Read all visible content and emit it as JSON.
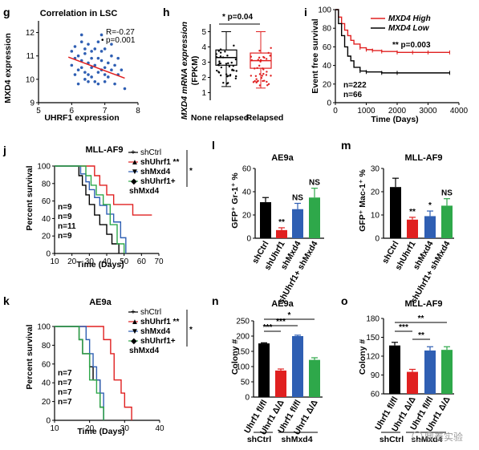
{
  "panels": {
    "g": {
      "label": "g",
      "title": "Correlation in LSC",
      "xlabel": "UHRF1 expression",
      "ylabel": "MXD4 expression",
      "r_text": "R=-0.27",
      "p_text": "p=0.001",
      "colors": {
        "points": "#2f5fb3",
        "fit": "#e02020"
      }
    },
    "h": {
      "label": "h",
      "ylabel_line1": "MXD4 mRNA expression",
      "ylabel_line2": "(FPKM)",
      "groups": [
        "None relapsed",
        "Relapsed"
      ],
      "sig_text": "*  p=0.04",
      "colors": {
        "none": "#000000",
        "relapsed": "#e02020"
      }
    },
    "i": {
      "label": "i",
      "xlabel": "Time (Days)",
      "ylabel": "Event free survival",
      "legend": [
        "MXD4 High",
        "MXD4 Low"
      ],
      "p_text": "** p=0.003",
      "n_high": "n=222",
      "n_low": "n=66",
      "colors": {
        "high": "#e02020",
        "low": "#000000"
      }
    },
    "j": {
      "label": "j",
      "title": "MLL-AF9",
      "xlabel": "Time (Days)",
      "ylabel": "Percent survival",
      "legend": [
        "shCtrl",
        "shUhrf1 **",
        "shMxd4",
        "shUhrf1+",
        "shMxd4"
      ],
      "sig_star": "*",
      "n_labels": [
        "n=9",
        "n=9",
        "n=11",
        "n=9"
      ]
    },
    "k": {
      "label": "k",
      "title": "AE9a",
      "xlabel": "Time (Days)",
      "ylabel": "Percent survival",
      "legend": [
        "shCtrl",
        "shUhrf1 **",
        "shMxd4",
        "shUhrf1+",
        "shMxd4"
      ],
      "sig_star": "*",
      "n_labels": [
        "n=7",
        "n=7",
        "n=7",
        "n=7"
      ]
    },
    "l": {
      "label": "l",
      "title": "AE9a",
      "ylabel": "GFP⁺ Gr-1⁺ %",
      "categories": [
        "shCtrl",
        "shUhrf1",
        "shMxd4",
        "shUhrf1+ shMxd4"
      ],
      "sig": [
        "",
        "**",
        "NS",
        "NS"
      ]
    },
    "m": {
      "label": "m",
      "title": "MLL-AF9",
      "ylabel": "GFP⁺ Mac-1⁺ %",
      "categories": [
        "shCtrl",
        "shUhrf1",
        "shMxd4",
        "shUhrf1+ shMxd4"
      ],
      "sig": [
        "",
        "**",
        "*",
        "NS"
      ]
    },
    "n": {
      "label": "n",
      "title": "AE9a",
      "ylabel": "Colony #",
      "categories": [
        "Uhrf1 fl/fl",
        "Uhrf1 Δ/Δ",
        "Uhrf1 fl/fl",
        "Uhrf1 Δ/Δ"
      ],
      "groups": [
        "shCtrl",
        "shMxd4"
      ],
      "sig": [
        "***",
        "***",
        "*"
      ]
    },
    "o": {
      "label": "o",
      "title": "MLL-AF9",
      "ylabel": "Colony #",
      "categories": [
        "Uhrf1 fl/fl",
        "Uhrf1 Δ/Δ",
        "Uhrf1 fl/fl",
        "Uhrf1 Δ/Δ"
      ],
      "groups": [
        "shCtrl",
        "shMxd4"
      ],
      "sig": [
        "***",
        "**",
        "**"
      ]
    }
  },
  "watermark": "鼎泰实验",
  "chart_data": [
    {
      "panel": "g",
      "type": "scatter",
      "title": "Correlation in LSC",
      "xlabel": "UHRF1 expression",
      "ylabel": "MXD4 expression",
      "xlim": [
        5,
        8
      ],
      "ylim": [
        9,
        12.5
      ],
      "xticks": [
        5,
        6,
        7,
        8
      ],
      "yticks": [
        9,
        10,
        11,
        12
      ],
      "fit": {
        "x": [
          5.9,
          7.6
        ],
        "y": [
          10.95,
          10.05
        ]
      },
      "points": [
        [
          6.1,
          11.4
        ],
        [
          6.3,
          11.6
        ],
        [
          6.5,
          11.5
        ],
        [
          6.8,
          11.6
        ],
        [
          7.0,
          11.3
        ],
        [
          6.2,
          11.0
        ],
        [
          6.4,
          11.1
        ],
        [
          6.6,
          10.9
        ],
        [
          6.9,
          11.2
        ],
        [
          7.2,
          11.0
        ],
        [
          6.0,
          10.6
        ],
        [
          6.3,
          10.5
        ],
        [
          6.5,
          10.7
        ],
        [
          6.7,
          10.6
        ],
        [
          7.0,
          10.5
        ],
        [
          7.3,
          10.6
        ],
        [
          6.1,
          10.2
        ],
        [
          6.4,
          10.3
        ],
        [
          6.6,
          10.1
        ],
        [
          6.8,
          10.3
        ],
        [
          7.1,
          10.1
        ],
        [
          7.4,
          10.2
        ],
        [
          6.2,
          9.8
        ],
        [
          6.5,
          9.9
        ],
        [
          6.8,
          9.8
        ],
        [
          7.0,
          9.9
        ],
        [
          7.3,
          9.8
        ],
        [
          6.3,
          11.9
        ],
        [
          6.9,
          11.9
        ],
        [
          7.5,
          10.4
        ],
        [
          6.0,
          11.2
        ],
        [
          6.7,
          11.3
        ],
        [
          7.2,
          11.5
        ],
        [
          6.4,
          10.0
        ],
        [
          7.6,
          9.6
        ],
        [
          6.9,
          10.8
        ],
        [
          6.2,
          10.4
        ],
        [
          6.6,
          11.2
        ],
        [
          7.1,
          10.7
        ],
        [
          6.5,
          10.2
        ],
        [
          6.8,
          10.9
        ],
        [
          6.3,
          10.8
        ],
        [
          7.0,
          10.2
        ],
        [
          6.7,
          9.9
        ],
        [
          6.1,
          10.9
        ],
        [
          7.2,
          10.4
        ],
        [
          6.4,
          11.3
        ],
        [
          6.9,
          10.4
        ],
        [
          6.6,
          10.5
        ],
        [
          7.4,
          10.9
        ]
      ]
    },
    {
      "panel": "h",
      "type": "box",
      "ylabel": "MXD4 mRNA expression (FPKM)",
      "ylim": [
        0.5,
        5.5
      ],
      "yticks": [
        1,
        2,
        3,
        4,
        5
      ],
      "categories": [
        "None relapsed",
        "Relapsed"
      ],
      "boxes": [
        {
          "q1": 2.8,
          "median": 3.3,
          "q3": 3.8,
          "whisker_low": 1.4,
          "whisker_high": 5.0
        },
        {
          "q1": 2.6,
          "median": 3.1,
          "q3": 3.6,
          "whisker_low": 1.3,
          "whisker_high": 5.0
        }
      ]
    },
    {
      "panel": "i",
      "type": "line",
      "xlabel": "Time (Days)",
      "ylabel": "Event free survival",
      "xlim": [
        0,
        4000
      ],
      "ylim": [
        0,
        100
      ],
      "xticks": [
        0,
        1000,
        2000,
        3000,
        4000
      ],
      "yticks": [
        0,
        20,
        40,
        60,
        80,
        100
      ],
      "series": [
        {
          "name": "MXD4 High",
          "x": [
            0,
            100,
            200,
            300,
            400,
            500,
            600,
            800,
            1000,
            1200,
            1500,
            2000,
            2500,
            3000,
            3700
          ],
          "y": [
            100,
            92,
            85,
            78,
            72,
            67,
            63,
            59,
            57,
            56,
            55,
            54,
            54,
            54,
            54
          ]
        },
        {
          "name": "MXD4 Low",
          "x": [
            0,
            100,
            200,
            300,
            400,
            500,
            600,
            800,
            1000,
            1500,
            2000,
            3700
          ],
          "y": [
            100,
            85,
            72,
            60,
            50,
            45,
            38,
            34,
            33,
            32,
            32,
            32
          ]
        }
      ]
    },
    {
      "panel": "j",
      "type": "line",
      "title": "MLL-AF9",
      "xlabel": "Time (Days)",
      "ylabel": "Percent survival",
      "xlim": [
        10,
        70
      ],
      "ylim": [
        0,
        100
      ],
      "xticks": [
        10,
        20,
        30,
        40,
        50,
        60,
        70
      ],
      "yticks": [
        0,
        20,
        40,
        60,
        80,
        100
      ],
      "series": [
        {
          "name": "shCtrl",
          "x": [
            10,
            20,
            24,
            26,
            28,
            30,
            33,
            36,
            40,
            43,
            47
          ],
          "y": [
            100,
            100,
            89,
            78,
            67,
            56,
            44,
            33,
            22,
            11,
            0
          ]
        },
        {
          "name": "shUhrf1",
          "x": [
            10,
            30,
            33,
            36,
            40,
            44,
            50,
            55,
            60,
            63,
            66
          ],
          "y": [
            100,
            100,
            89,
            78,
            67,
            56,
            56,
            44,
            44,
            44,
            44
          ]
        },
        {
          "name": "shMxd4",
          "x": [
            10,
            22,
            25,
            28,
            30,
            33,
            36,
            40,
            44,
            48,
            51
          ],
          "y": [
            100,
            100,
            91,
            82,
            73,
            64,
            55,
            45,
            36,
            18,
            0
          ]
        },
        {
          "name": "shUhrf1+shMxd4",
          "x": [
            10,
            25,
            28,
            31,
            34,
            38,
            42,
            46,
            50
          ],
          "y": [
            100,
            100,
            89,
            78,
            67,
            56,
            33,
            11,
            0
          ]
        }
      ]
    },
    {
      "panel": "k",
      "type": "line",
      "title": "AE9a",
      "xlabel": "Time (Days)",
      "ylabel": "Percent survival",
      "xlim": [
        10,
        40
      ],
      "ylim": [
        0,
        100
      ],
      "xticks": [
        10,
        20,
        30,
        40
      ],
      "yticks": [
        0,
        20,
        40,
        60,
        80,
        100
      ],
      "series": [
        {
          "name": "shCtrl",
          "x": [
            10,
            16,
            17,
            18,
            20,
            21,
            23,
            24
          ],
          "y": [
            100,
            100,
            86,
            71,
            57,
            43,
            14,
            0
          ]
        },
        {
          "name": "shUhrf1",
          "x": [
            10,
            22,
            24,
            26,
            27,
            29,
            30,
            32
          ],
          "y": [
            100,
            100,
            86,
            71,
            43,
            29,
            14,
            0
          ]
        },
        {
          "name": "shMxd4",
          "x": [
            10,
            17,
            19,
            20,
            21,
            22,
            23,
            24
          ],
          "y": [
            100,
            100,
            86,
            71,
            57,
            43,
            29,
            0
          ]
        },
        {
          "name": "shUhrf1+shMxd4",
          "x": [
            10,
            16,
            17,
            18,
            20,
            22,
            23,
            24
          ],
          "y": [
            100,
            100,
            86,
            71,
            43,
            29,
            14,
            0
          ]
        }
      ]
    },
    {
      "panel": "l",
      "type": "bar",
      "title": "AE9a",
      "ylabel": "GFP⁺ Gr-1⁺ %",
      "ylim": [
        0,
        60
      ],
      "yticks": [
        0,
        20,
        40,
        60
      ],
      "categories": [
        "shCtrl",
        "shUhrf1",
        "shMxd4",
        "shUhrf1+ shMxd4"
      ],
      "values": [
        31,
        7,
        25,
        35
      ],
      "errors": [
        4,
        2,
        5,
        8
      ],
      "colors": [
        "#000000",
        "#e02020",
        "#2f5fb3",
        "#2ea84a"
      ]
    },
    {
      "panel": "m",
      "type": "bar",
      "title": "MLL-AF9",
      "ylabel": "GFP⁺ Mac-1⁺ %",
      "ylim": [
        0,
        30
      ],
      "yticks": [
        0,
        10,
        20,
        30
      ],
      "categories": [
        "shCtrl",
        "shUhrf1",
        "shMxd4",
        "shUhrf1+ shMxd4"
      ],
      "values": [
        22,
        8,
        9.5,
        14
      ],
      "errors": [
        3.8,
        1,
        2.2,
        3
      ],
      "colors": [
        "#000000",
        "#e02020",
        "#2f5fb3",
        "#2ea84a"
      ]
    },
    {
      "panel": "n",
      "type": "bar",
      "title": "AE9a",
      "ylabel": "Colony #",
      "ylim": [
        0,
        250
      ],
      "yticks": [
        0,
        50,
        100,
        150,
        200,
        250
      ],
      "categories": [
        "Uhrf1 fl/fl",
        "Uhrf1 Δ/Δ",
        "Uhrf1 fl/fl",
        "Uhrf1 Δ/Δ"
      ],
      "values": [
        176,
        87,
        200,
        122
      ],
      "errors": [
        2,
        5,
        3,
        7
      ],
      "colors": [
        "#000000",
        "#e02020",
        "#2f5fb3",
        "#2ea84a"
      ]
    },
    {
      "panel": "o",
      "type": "bar",
      "title": "MLL-AF9",
      "ylabel": "Colony #",
      "ylim": [
        60,
        180
      ],
      "yticks": [
        60,
        90,
        120,
        150,
        180
      ],
      "categories": [
        "Uhrf1 fl/fl",
        "Uhrf1 Δ/Δ",
        "Uhrf1 fl/fl",
        "Uhrf1 Δ/Δ"
      ],
      "values": [
        137,
        95,
        129,
        130
      ],
      "errors": [
        5,
        4,
        6,
        5
      ],
      "colors": [
        "#000000",
        "#e02020",
        "#2f5fb3",
        "#2ea84a"
      ]
    }
  ]
}
